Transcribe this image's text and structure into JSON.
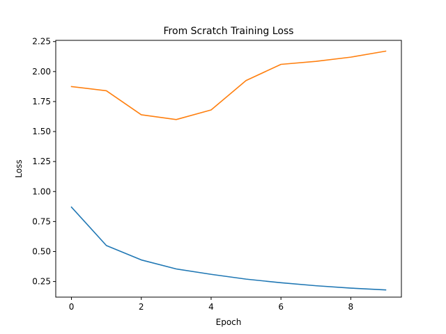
{
  "chart_data": {
    "type": "line",
    "title": "From Scratch Training Loss",
    "xlabel": "Epoch",
    "ylabel": "Loss",
    "x": [
      0,
      1,
      2,
      3,
      4,
      5,
      6,
      7,
      8,
      9
    ],
    "xlim": [
      -0.45,
      9.45
    ],
    "ylim": [
      0.12,
      2.26
    ],
    "xticks": [
      0,
      2,
      4,
      6,
      8
    ],
    "yticks": [
      0.25,
      0.5,
      0.75,
      1.0,
      1.25,
      1.5,
      1.75,
      2.0,
      2.25
    ],
    "ytick_labels": [
      "0.25",
      "0.50",
      "0.75",
      "1.00",
      "1.25",
      "1.50",
      "1.75",
      "2.00",
      "2.25"
    ],
    "grid": false,
    "legend": "none",
    "series": [
      {
        "color": "#1f77b4",
        "values": [
          0.87,
          0.55,
          0.43,
          0.355,
          0.31,
          0.27,
          0.24,
          0.215,
          0.195,
          0.18
        ]
      },
      {
        "color": "#ff7f0e",
        "values": [
          1.875,
          1.84,
          1.64,
          1.6,
          1.68,
          1.925,
          2.06,
          2.085,
          2.12,
          2.17
        ]
      }
    ]
  }
}
